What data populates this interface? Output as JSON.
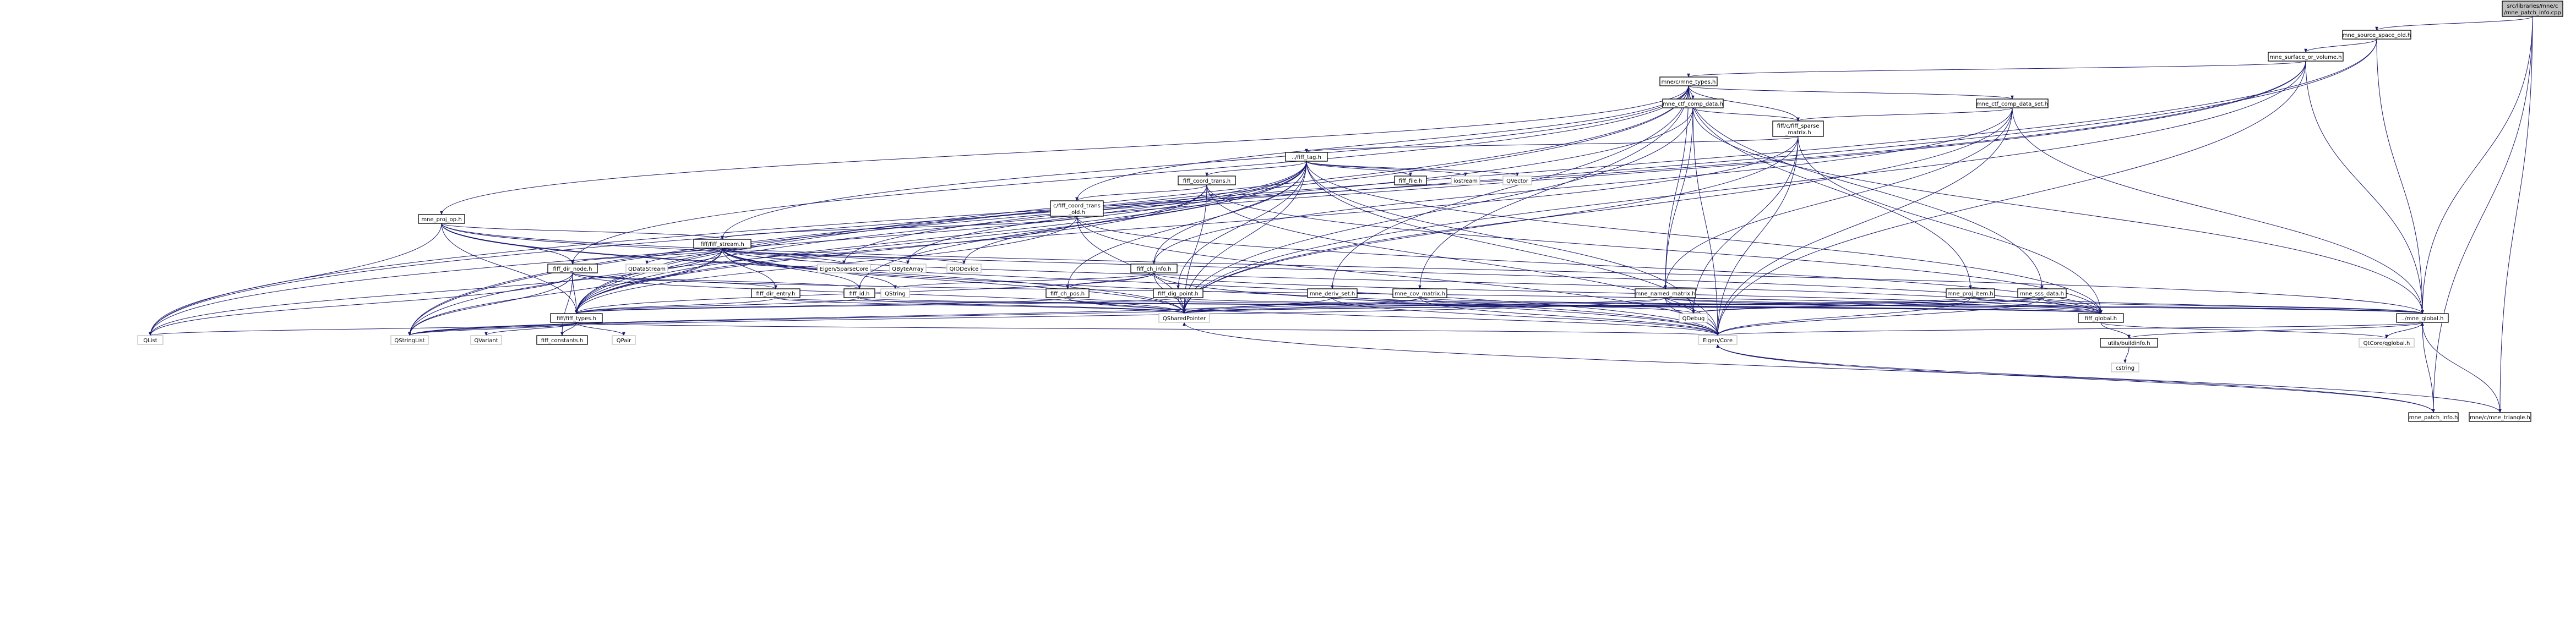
{
  "colors": {
    "edge": "#191970",
    "node_fill": "#ffffff",
    "node_border": "#000000",
    "external_fill": "#ffffff",
    "external_border": "#bfbfbf",
    "root_fill": "#bfbfbf",
    "root_border": "#000000"
  },
  "nodes": [
    {
      "id": "root",
      "lines": [
        "src/libraries/mne/c",
        "/mne_patch_info.cpp"
      ],
      "kind": "root"
    },
    {
      "id": "mne_source_space_old",
      "lines": [
        "mne_source_space_old.h"
      ],
      "kind": "file"
    },
    {
      "id": "mne_patch_info",
      "lines": [
        "mne_patch_info.h"
      ],
      "kind": "file"
    },
    {
      "id": "mne_triangle",
      "lines": [
        "mne/c/mne_triangle.h"
      ],
      "kind": "file"
    },
    {
      "id": "mne_surface_or_volume",
      "lines": [
        "mne_surface_or_volume.h"
      ],
      "kind": "file"
    },
    {
      "id": "mne_types",
      "lines": [
        "mne/c/mne_types.h"
      ],
      "kind": "file"
    },
    {
      "id": "mne_ctf_comp_data",
      "lines": [
        "mne_ctf_comp_data.h"
      ],
      "kind": "file"
    },
    {
      "id": "mne_ctf_comp_data_set",
      "lines": [
        "mne_ctf_comp_data_set.h"
      ],
      "kind": "file"
    },
    {
      "id": "fiff_sparse_matrix",
      "lines": [
        "fiff/c/fiff_sparse",
        "_matrix.h"
      ],
      "kind": "file"
    },
    {
      "id": "fiff_tag",
      "lines": [
        "../fiff_tag.h"
      ],
      "kind": "file"
    },
    {
      "id": "fiff_coord_trans",
      "lines": [
        "fiff_coord_trans.h"
      ],
      "kind": "file"
    },
    {
      "id": "fiff_file",
      "lines": [
        "fiff_file.h"
      ],
      "kind": "file"
    },
    {
      "id": "iostream",
      "lines": [
        "iostream"
      ],
      "kind": "external"
    },
    {
      "id": "QVector",
      "lines": [
        "QVector"
      ],
      "kind": "external"
    },
    {
      "id": "fiff_coord_trans_old",
      "lines": [
        "c/fiff_coord_trans",
        "_old.h"
      ],
      "kind": "file"
    },
    {
      "id": "mne_proj_op",
      "lines": [
        "mne_proj_op.h"
      ],
      "kind": "file"
    },
    {
      "id": "fiff_stream",
      "lines": [
        "fiff/fiff_stream.h"
      ],
      "kind": "file"
    },
    {
      "id": "fiff_dir_node",
      "lines": [
        "fiff_dir_node.h"
      ],
      "kind": "file"
    },
    {
      "id": "QDataStream",
      "lines": [
        "QDataStream"
      ],
      "kind": "external"
    },
    {
      "id": "EigenSparseCore",
      "lines": [
        "Eigen/SparseCore"
      ],
      "kind": "external"
    },
    {
      "id": "QByteArray",
      "lines": [
        "QByteArray"
      ],
      "kind": "external"
    },
    {
      "id": "QIODevice",
      "lines": [
        "QIODevice"
      ],
      "kind": "external"
    },
    {
      "id": "fiff_ch_info",
      "lines": [
        "fiff_ch_info.h"
      ],
      "kind": "file"
    },
    {
      "id": "fiff_dir_entry",
      "lines": [
        "fiff_dir_entry.h"
      ],
      "kind": "file"
    },
    {
      "id": "fiff_id",
      "lines": [
        "fiff_id.h"
      ],
      "kind": "file"
    },
    {
      "id": "QString",
      "lines": [
        "QString"
      ],
      "kind": "external"
    },
    {
      "id": "fiff_ch_pos",
      "lines": [
        "fiff_ch_pos.h"
      ],
      "kind": "file"
    },
    {
      "id": "fiff_dig_point",
      "lines": [
        "fiff_dig_point.h"
      ],
      "kind": "file"
    },
    {
      "id": "mne_deriv_set",
      "lines": [
        "mne_deriv_set.h"
      ],
      "kind": "file"
    },
    {
      "id": "mne_cov_matrix",
      "lines": [
        "mne_cov_matrix.h"
      ],
      "kind": "file"
    },
    {
      "id": "mne_named_matrix",
      "lines": [
        "mne_named_matrix.h"
      ],
      "kind": "file"
    },
    {
      "id": "mne_proj_item",
      "lines": [
        "mne_proj_item.h"
      ],
      "kind": "file"
    },
    {
      "id": "mne_sss_data",
      "lines": [
        "mne_sss_data.h"
      ],
      "kind": "file"
    },
    {
      "id": "fiff_types",
      "lines": [
        "fiff/fiff_types.h"
      ],
      "kind": "file"
    },
    {
      "id": "QSharedPointer",
      "lines": [
        "QSharedPointer"
      ],
      "kind": "external"
    },
    {
      "id": "QDebug",
      "lines": [
        "QDebug"
      ],
      "kind": "external"
    },
    {
      "id": "fiff_global",
      "lines": [
        "fiff_global.h"
      ],
      "kind": "file"
    },
    {
      "id": "mne_global",
      "lines": [
        "../mne_global.h"
      ],
      "kind": "file"
    },
    {
      "id": "QList",
      "lines": [
        "QList"
      ],
      "kind": "external"
    },
    {
      "id": "QStringList",
      "lines": [
        "QStringList"
      ],
      "kind": "external"
    },
    {
      "id": "QVariant",
      "lines": [
        "QVariant"
      ],
      "kind": "external"
    },
    {
      "id": "fiff_constants",
      "lines": [
        "fiff_constants.h"
      ],
      "kind": "file"
    },
    {
      "id": "QPair",
      "lines": [
        "QPair"
      ],
      "kind": "external"
    },
    {
      "id": "EigenCore",
      "lines": [
        "Eigen/Core"
      ],
      "kind": "external"
    },
    {
      "id": "buildinfo",
      "lines": [
        "utils/buildinfo.h"
      ],
      "kind": "file"
    },
    {
      "id": "qglobal",
      "lines": [
        "QtCore/qglobal.h"
      ],
      "kind": "external"
    },
    {
      "id": "cstring",
      "lines": [
        "cstring"
      ],
      "kind": "external"
    }
  ],
  "edges": [
    [
      "root",
      "mne_source_space_old"
    ],
    [
      "root",
      "mne_patch_info"
    ],
    [
      "root",
      "mne_triangle"
    ],
    [
      "root",
      "mne_global"
    ],
    [
      "mne_source_space_old",
      "mne_surface_or_volume"
    ],
    [
      "mne_source_space_old",
      "mne_global"
    ],
    [
      "mne_source_space_old",
      "fiff_types"
    ],
    [
      "mne_source_space_old",
      "QStringList"
    ],
    [
      "mne_surface_or_volume",
      "mne_types"
    ],
    [
      "mne_surface_or_volume",
      "mne_global"
    ],
    [
      "mne_surface_or_volume",
      "fiff_types"
    ],
    [
      "mne_surface_or_volume",
      "EigenCore"
    ],
    [
      "mne_surface_or_volume",
      "QSharedPointer"
    ],
    [
      "mne_surface_or_volume",
      "QList"
    ],
    [
      "mne_types",
      "mne_ctf_comp_data"
    ],
    [
      "mne_types",
      "mne_ctf_comp_data_set"
    ],
    [
      "mne_types",
      "fiff_sparse_matrix"
    ],
    [
      "mne_types",
      "fiff_coord_trans_old"
    ],
    [
      "mne_types",
      "mne_proj_op"
    ],
    [
      "mne_types",
      "fiff_stream"
    ],
    [
      "mne_types",
      "mne_named_matrix"
    ],
    [
      "mne_types",
      "mne_deriv_set"
    ],
    [
      "mne_types",
      "mne_cov_matrix"
    ],
    [
      "mne_types",
      "mne_proj_item"
    ],
    [
      "mne_types",
      "mne_sss_data"
    ],
    [
      "mne_types",
      "fiff_types"
    ],
    [
      "mne_types",
      "QStringList"
    ],
    [
      "mne_types",
      "fiff_dir_node"
    ],
    [
      "mne_ctf_comp_data",
      "fiff_sparse_matrix"
    ],
    [
      "mne_ctf_comp_data",
      "mne_named_matrix"
    ],
    [
      "mne_ctf_comp_data",
      "mne_global"
    ],
    [
      "mne_ctf_comp_data",
      "QSharedPointer"
    ],
    [
      "mne_ctf_comp_data",
      "EigenCore"
    ],
    [
      "mne_ctf_comp_data",
      "QList"
    ],
    [
      "mne_ctf_comp_data_set",
      "fiff_sparse_matrix"
    ],
    [
      "mne_ctf_comp_data_set",
      "mne_named_matrix"
    ],
    [
      "mne_ctf_comp_data_set",
      "mne_global"
    ],
    [
      "mne_ctf_comp_data_set",
      "fiff_ch_info"
    ],
    [
      "mne_ctf_comp_data_set",
      "QSharedPointer"
    ],
    [
      "mne_ctf_comp_data_set",
      "EigenCore"
    ],
    [
      "fiff_sparse_matrix",
      "fiff_tag"
    ],
    [
      "fiff_sparse_matrix",
      "fiff_global"
    ],
    [
      "fiff_sparse_matrix",
      "fiff_types"
    ],
    [
      "fiff_sparse_matrix",
      "EigenCore"
    ],
    [
      "fiff_sparse_matrix",
      "QSharedPointer"
    ],
    [
      "fiff_sparse_matrix",
      "QDebug"
    ],
    [
      "fiff_tag",
      "fiff_coord_trans"
    ],
    [
      "fiff_tag",
      "fiff_file"
    ],
    [
      "fiff_tag",
      "iostream"
    ],
    [
      "fiff_tag",
      "QVector"
    ],
    [
      "fiff_tag",
      "fiff_ch_info"
    ],
    [
      "fiff_tag",
      "fiff_ch_pos"
    ],
    [
      "fiff_tag",
      "fiff_dig_point"
    ],
    [
      "fiff_tag",
      "fiff_id"
    ],
    [
      "fiff_tag",
      "fiff_types"
    ],
    [
      "fiff_tag",
      "fiff_global"
    ],
    [
      "fiff_tag",
      "EigenCore"
    ],
    [
      "fiff_tag",
      "EigenSparseCore"
    ],
    [
      "fiff_tag",
      "QByteArray"
    ],
    [
      "fiff_tag",
      "QSharedPointer"
    ],
    [
      "fiff_tag",
      "QDebug"
    ],
    [
      "fiff_tag",
      "QList"
    ],
    [
      "fiff_tag",
      "QStringList"
    ],
    [
      "fiff_coord_trans",
      "fiff_coord_trans_old"
    ],
    [
      "fiff_coord_trans",
      "fiff_global"
    ],
    [
      "fiff_coord_trans",
      "fiff_types"
    ],
    [
      "fiff_coord_trans",
      "EigenCore"
    ],
    [
      "fiff_coord_trans",
      "QSharedPointer"
    ],
    [
      "fiff_coord_trans",
      "QIODevice"
    ],
    [
      "fiff_coord_trans_old",
      "fiff_stream"
    ],
    [
      "fiff_coord_trans_old",
      "fiff_global"
    ],
    [
      "fiff_coord_trans_old",
      "fiff_types"
    ],
    [
      "fiff_coord_trans_old",
      "EigenCore"
    ],
    [
      "fiff_coord_trans_old",
      "QSharedPointer"
    ],
    [
      "mne_proj_op",
      "fiff_stream"
    ],
    [
      "mne_proj_op",
      "mne_global"
    ],
    [
      "mne_proj_op",
      "fiff_types"
    ],
    [
      "mne_proj_op",
      "EigenCore"
    ],
    [
      "mne_proj_op",
      "QSharedPointer"
    ],
    [
      "mne_proj_op",
      "QList"
    ],
    [
      "mne_proj_op",
      "fiff_dir_node"
    ],
    [
      "mne_proj_op",
      "fiff_global"
    ],
    [
      "fiff_stream",
      "fiff_dir_node"
    ],
    [
      "fiff_stream",
      "fiff_dir_entry"
    ],
    [
      "fiff_stream",
      "fiff_id"
    ],
    [
      "fiff_stream",
      "QString"
    ],
    [
      "fiff_stream",
      "QDataStream"
    ],
    [
      "fiff_stream",
      "EigenSparseCore"
    ],
    [
      "fiff_stream",
      "QByteArray"
    ],
    [
      "fiff_stream",
      "QIODevice"
    ],
    [
      "fiff_stream",
      "fiff_global"
    ],
    [
      "fiff_stream",
      "fiff_types"
    ],
    [
      "fiff_stream",
      "EigenCore"
    ],
    [
      "fiff_stream",
      "QSharedPointer"
    ],
    [
      "fiff_stream",
      "QList"
    ],
    [
      "fiff_stream",
      "QStringList"
    ],
    [
      "fiff_dir_node",
      "fiff_dir_entry"
    ],
    [
      "fiff_dir_node",
      "fiff_id"
    ],
    [
      "fiff_dir_node",
      "fiff_types"
    ],
    [
      "fiff_dir_node",
      "fiff_global"
    ],
    [
      "fiff_dir_node",
      "QSharedPointer"
    ],
    [
      "fiff_dir_node",
      "QList"
    ],
    [
      "fiff_dir_node",
      "fiff_constants"
    ],
    [
      "fiff_dir_node",
      "QStringList"
    ],
    [
      "fiff_ch_info",
      "fiff_ch_pos"
    ],
    [
      "fiff_ch_info",
      "fiff_types"
    ],
    [
      "fiff_ch_info",
      "fiff_global"
    ],
    [
      "fiff_ch_info",
      "QString"
    ],
    [
      "fiff_ch_info",
      "EigenCore"
    ],
    [
      "fiff_ch_info",
      "QSharedPointer"
    ],
    [
      "fiff_dir_entry",
      "fiff_types"
    ],
    [
      "fiff_dir_entry",
      "fiff_global"
    ],
    [
      "fiff_dir_entry",
      "QSharedPointer"
    ],
    [
      "fiff_id",
      "fiff_types"
    ],
    [
      "fiff_id",
      "fiff_global"
    ],
    [
      "fiff_id",
      "QSharedPointer"
    ],
    [
      "fiff_ch_pos",
      "fiff_types"
    ],
    [
      "fiff_ch_pos",
      "fiff_global"
    ],
    [
      "fiff_ch_pos",
      "EigenCore"
    ],
    [
      "fiff_ch_pos",
      "QSharedPointer"
    ],
    [
      "fiff_dig_point",
      "fiff_types"
    ],
    [
      "fiff_dig_point",
      "fiff_global"
    ],
    [
      "fiff_dig_point",
      "QSharedPointer"
    ],
    [
      "mne_deriv_set",
      "mne_global"
    ],
    [
      "mne_deriv_set",
      "QSharedPointer"
    ],
    [
      "mne_deriv_set",
      "EigenCore"
    ],
    [
      "mne_deriv_set",
      "QStringList"
    ],
    [
      "mne_cov_matrix",
      "mne_global"
    ],
    [
      "mne_cov_matrix",
      "QSharedPointer"
    ],
    [
      "mne_cov_matrix",
      "EigenCore"
    ],
    [
      "mne_cov_matrix",
      "QStringList"
    ],
    [
      "mne_cov_matrix",
      "QDebug"
    ],
    [
      "mne_named_matrix",
      "mne_global"
    ],
    [
      "mne_named_matrix",
      "fiff_global"
    ],
    [
      "mne_named_matrix",
      "QSharedPointer"
    ],
    [
      "mne_named_matrix",
      "EigenCore"
    ],
    [
      "mne_named_matrix",
      "QStringList"
    ],
    [
      "mne_named_matrix",
      "QDebug"
    ],
    [
      "mne_proj_item",
      "mne_global"
    ],
    [
      "mne_proj_item",
      "EigenCore"
    ],
    [
      "mne_proj_item",
      "QSharedPointer"
    ],
    [
      "mne_proj_item",
      "QDebug"
    ],
    [
      "mne_sss_data",
      "mne_global"
    ],
    [
      "mne_sss_data",
      "EigenCore"
    ],
    [
      "mne_sss_data",
      "QSharedPointer"
    ],
    [
      "mne_sss_data",
      "QDebug"
    ],
    [
      "mne_sss_data",
      "fiff_global"
    ],
    [
      "mne_patch_info",
      "mne_global"
    ],
    [
      "mne_patch_info",
      "EigenCore"
    ],
    [
      "mne_patch_info",
      "QSharedPointer"
    ],
    [
      "mne_triangle",
      "mne_global"
    ],
    [
      "mne_triangle",
      "EigenCore"
    ],
    [
      "fiff_types",
      "fiff_constants"
    ],
    [
      "fiff_types",
      "EigenCore"
    ],
    [
      "fiff_types",
      "QList"
    ],
    [
      "fiff_types",
      "QStringList"
    ],
    [
      "fiff_types",
      "QVariant"
    ],
    [
      "fiff_types",
      "QPair"
    ],
    [
      "fiff_global",
      "buildinfo"
    ],
    [
      "fiff_global",
      "qglobal"
    ],
    [
      "mne_global",
      "buildinfo"
    ],
    [
      "mne_global",
      "qglobal"
    ],
    [
      "mne_global",
      "EigenCore"
    ],
    [
      "buildinfo",
      "cstring"
    ]
  ]
}
